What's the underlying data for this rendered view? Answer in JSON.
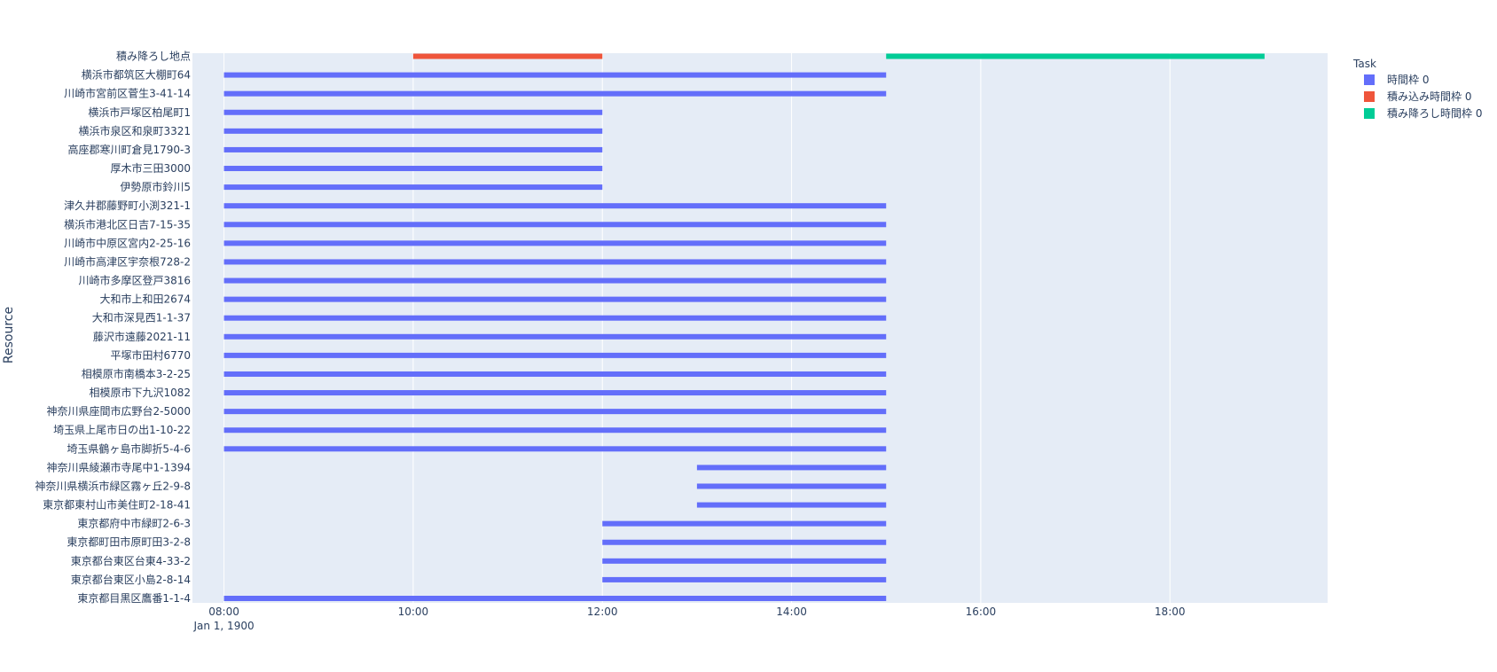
{
  "chart_data": {
    "type": "bar",
    "orientation": "horizontal-timeline",
    "title": "",
    "xlabel": "",
    "ylabel": "Resource",
    "x_date_label": "Jan 1, 1900",
    "xlim": [
      "07:40",
      "19:40"
    ],
    "x_ticks": [
      "08:00",
      "10:00",
      "12:00",
      "14:00",
      "16:00",
      "18:00"
    ],
    "grid": true,
    "legend_title": "Task",
    "legend_position": "top-right",
    "series": [
      {
        "name": "時間枠 0",
        "color": "#636efa"
      },
      {
        "name": "積み込み時間枠 0",
        "color": "#ef553b"
      },
      {
        "name": "積み降ろし時間枠 0",
        "color": "#00cc96"
      }
    ],
    "categories": [
      "積み降ろし地点",
      "横浜市都筑区大棚町64",
      "川崎市宮前区菅生3-41-14",
      "横浜市戸塚区柏尾町1",
      "横浜市泉区和泉町3321",
      "高座郡寒川町倉見1790-3",
      "厚木市三田3000",
      "伊勢原市鈴川5",
      "津久井郡藤野町小渕321-1",
      "横浜市港北区日吉7-15-35",
      "川崎市中原区宮内2-25-16",
      "川崎市高津区宇奈根728-2",
      "川崎市多摩区登戸3816",
      "大和市上和田2674",
      "大和市深見西1-1-37",
      "藤沢市遠藤2021-11",
      "平塚市田村6770",
      "相模原市南橋本3-2-25",
      "相模原市下九沢1082",
      "神奈川県座間市広野台2-5000",
      "埼玉県上尾市日の出1-10-22",
      "埼玉県鶴ヶ島市脚折5-4-6",
      "神奈川県綾瀬市寺尾中1-1394",
      "神奈川県横浜市緑区霧ヶ丘2-9-8",
      "東京都東村山市美住町2-18-41",
      "東京都府中市緑町2-6-3",
      "東京都町田市原町田3-2-8",
      "東京都台東区台東4-33-2",
      "東京都台東区小島2-8-14",
      "東京都目黒区鷹番1-1-4"
    ],
    "bars": [
      {
        "resource": "積み降ろし地点",
        "task": "積み込み時間枠 0",
        "start": "10:00",
        "end": "12:00"
      },
      {
        "resource": "積み降ろし地点",
        "task": "積み降ろし時間枠 0",
        "start": "15:00",
        "end": "19:00"
      },
      {
        "resource": "横浜市都筑区大棚町64",
        "task": "時間枠 0",
        "start": "08:00",
        "end": "15:00"
      },
      {
        "resource": "川崎市宮前区菅生3-41-14",
        "task": "時間枠 0",
        "start": "08:00",
        "end": "15:00"
      },
      {
        "resource": "横浜市戸塚区柏尾町1",
        "task": "時間枠 0",
        "start": "08:00",
        "end": "12:00"
      },
      {
        "resource": "横浜市泉区和泉町3321",
        "task": "時間枠 0",
        "start": "08:00",
        "end": "12:00"
      },
      {
        "resource": "高座郡寒川町倉見1790-3",
        "task": "時間枠 0",
        "start": "08:00",
        "end": "12:00"
      },
      {
        "resource": "厚木市三田3000",
        "task": "時間枠 0",
        "start": "08:00",
        "end": "12:00"
      },
      {
        "resource": "伊勢原市鈴川5",
        "task": "時間枠 0",
        "start": "08:00",
        "end": "12:00"
      },
      {
        "resource": "津久井郡藤野町小渕321-1",
        "task": "時間枠 0",
        "start": "08:00",
        "end": "15:00"
      },
      {
        "resource": "横浜市港北区日吉7-15-35",
        "task": "時間枠 0",
        "start": "08:00",
        "end": "15:00"
      },
      {
        "resource": "川崎市中原区宮内2-25-16",
        "task": "時間枠 0",
        "start": "08:00",
        "end": "15:00"
      },
      {
        "resource": "川崎市高津区宇奈根728-2",
        "task": "時間枠 0",
        "start": "08:00",
        "end": "15:00"
      },
      {
        "resource": "川崎市多摩区登戸3816",
        "task": "時間枠 0",
        "start": "08:00",
        "end": "15:00"
      },
      {
        "resource": "大和市上和田2674",
        "task": "時間枠 0",
        "start": "08:00",
        "end": "15:00"
      },
      {
        "resource": "大和市深見西1-1-37",
        "task": "時間枠 0",
        "start": "08:00",
        "end": "15:00"
      },
      {
        "resource": "藤沢市遠藤2021-11",
        "task": "時間枠 0",
        "start": "08:00",
        "end": "15:00"
      },
      {
        "resource": "平塚市田村6770",
        "task": "時間枠 0",
        "start": "08:00",
        "end": "15:00"
      },
      {
        "resource": "相模原市南橋本3-2-25",
        "task": "時間枠 0",
        "start": "08:00",
        "end": "15:00"
      },
      {
        "resource": "相模原市下九沢1082",
        "task": "時間枠 0",
        "start": "08:00",
        "end": "15:00"
      },
      {
        "resource": "神奈川県座間市広野台2-5000",
        "task": "時間枠 0",
        "start": "08:00",
        "end": "15:00"
      },
      {
        "resource": "埼玉県上尾市日の出1-10-22",
        "task": "時間枠 0",
        "start": "08:00",
        "end": "15:00"
      },
      {
        "resource": "埼玉県鶴ヶ島市脚折5-4-6",
        "task": "時間枠 0",
        "start": "08:00",
        "end": "15:00"
      },
      {
        "resource": "神奈川県綾瀬市寺尾中1-1394",
        "task": "時間枠 0",
        "start": "13:00",
        "end": "15:00"
      },
      {
        "resource": "神奈川県横浜市緑区霧ヶ丘2-9-8",
        "task": "時間枠 0",
        "start": "13:00",
        "end": "15:00"
      },
      {
        "resource": "東京都東村山市美住町2-18-41",
        "task": "時間枠 0",
        "start": "13:00",
        "end": "15:00"
      },
      {
        "resource": "東京都府中市緑町2-6-3",
        "task": "時間枠 0",
        "start": "12:00",
        "end": "15:00"
      },
      {
        "resource": "東京都町田市原町田3-2-8",
        "task": "時間枠 0",
        "start": "12:00",
        "end": "15:00"
      },
      {
        "resource": "東京都台東区台東4-33-2",
        "task": "時間枠 0",
        "start": "12:00",
        "end": "15:00"
      },
      {
        "resource": "東京都台東区小島2-8-14",
        "task": "時間枠 0",
        "start": "12:00",
        "end": "15:00"
      },
      {
        "resource": "東京都目黒区鷹番1-1-4",
        "task": "時間枠 0",
        "start": "08:00",
        "end": "15:00"
      }
    ]
  }
}
